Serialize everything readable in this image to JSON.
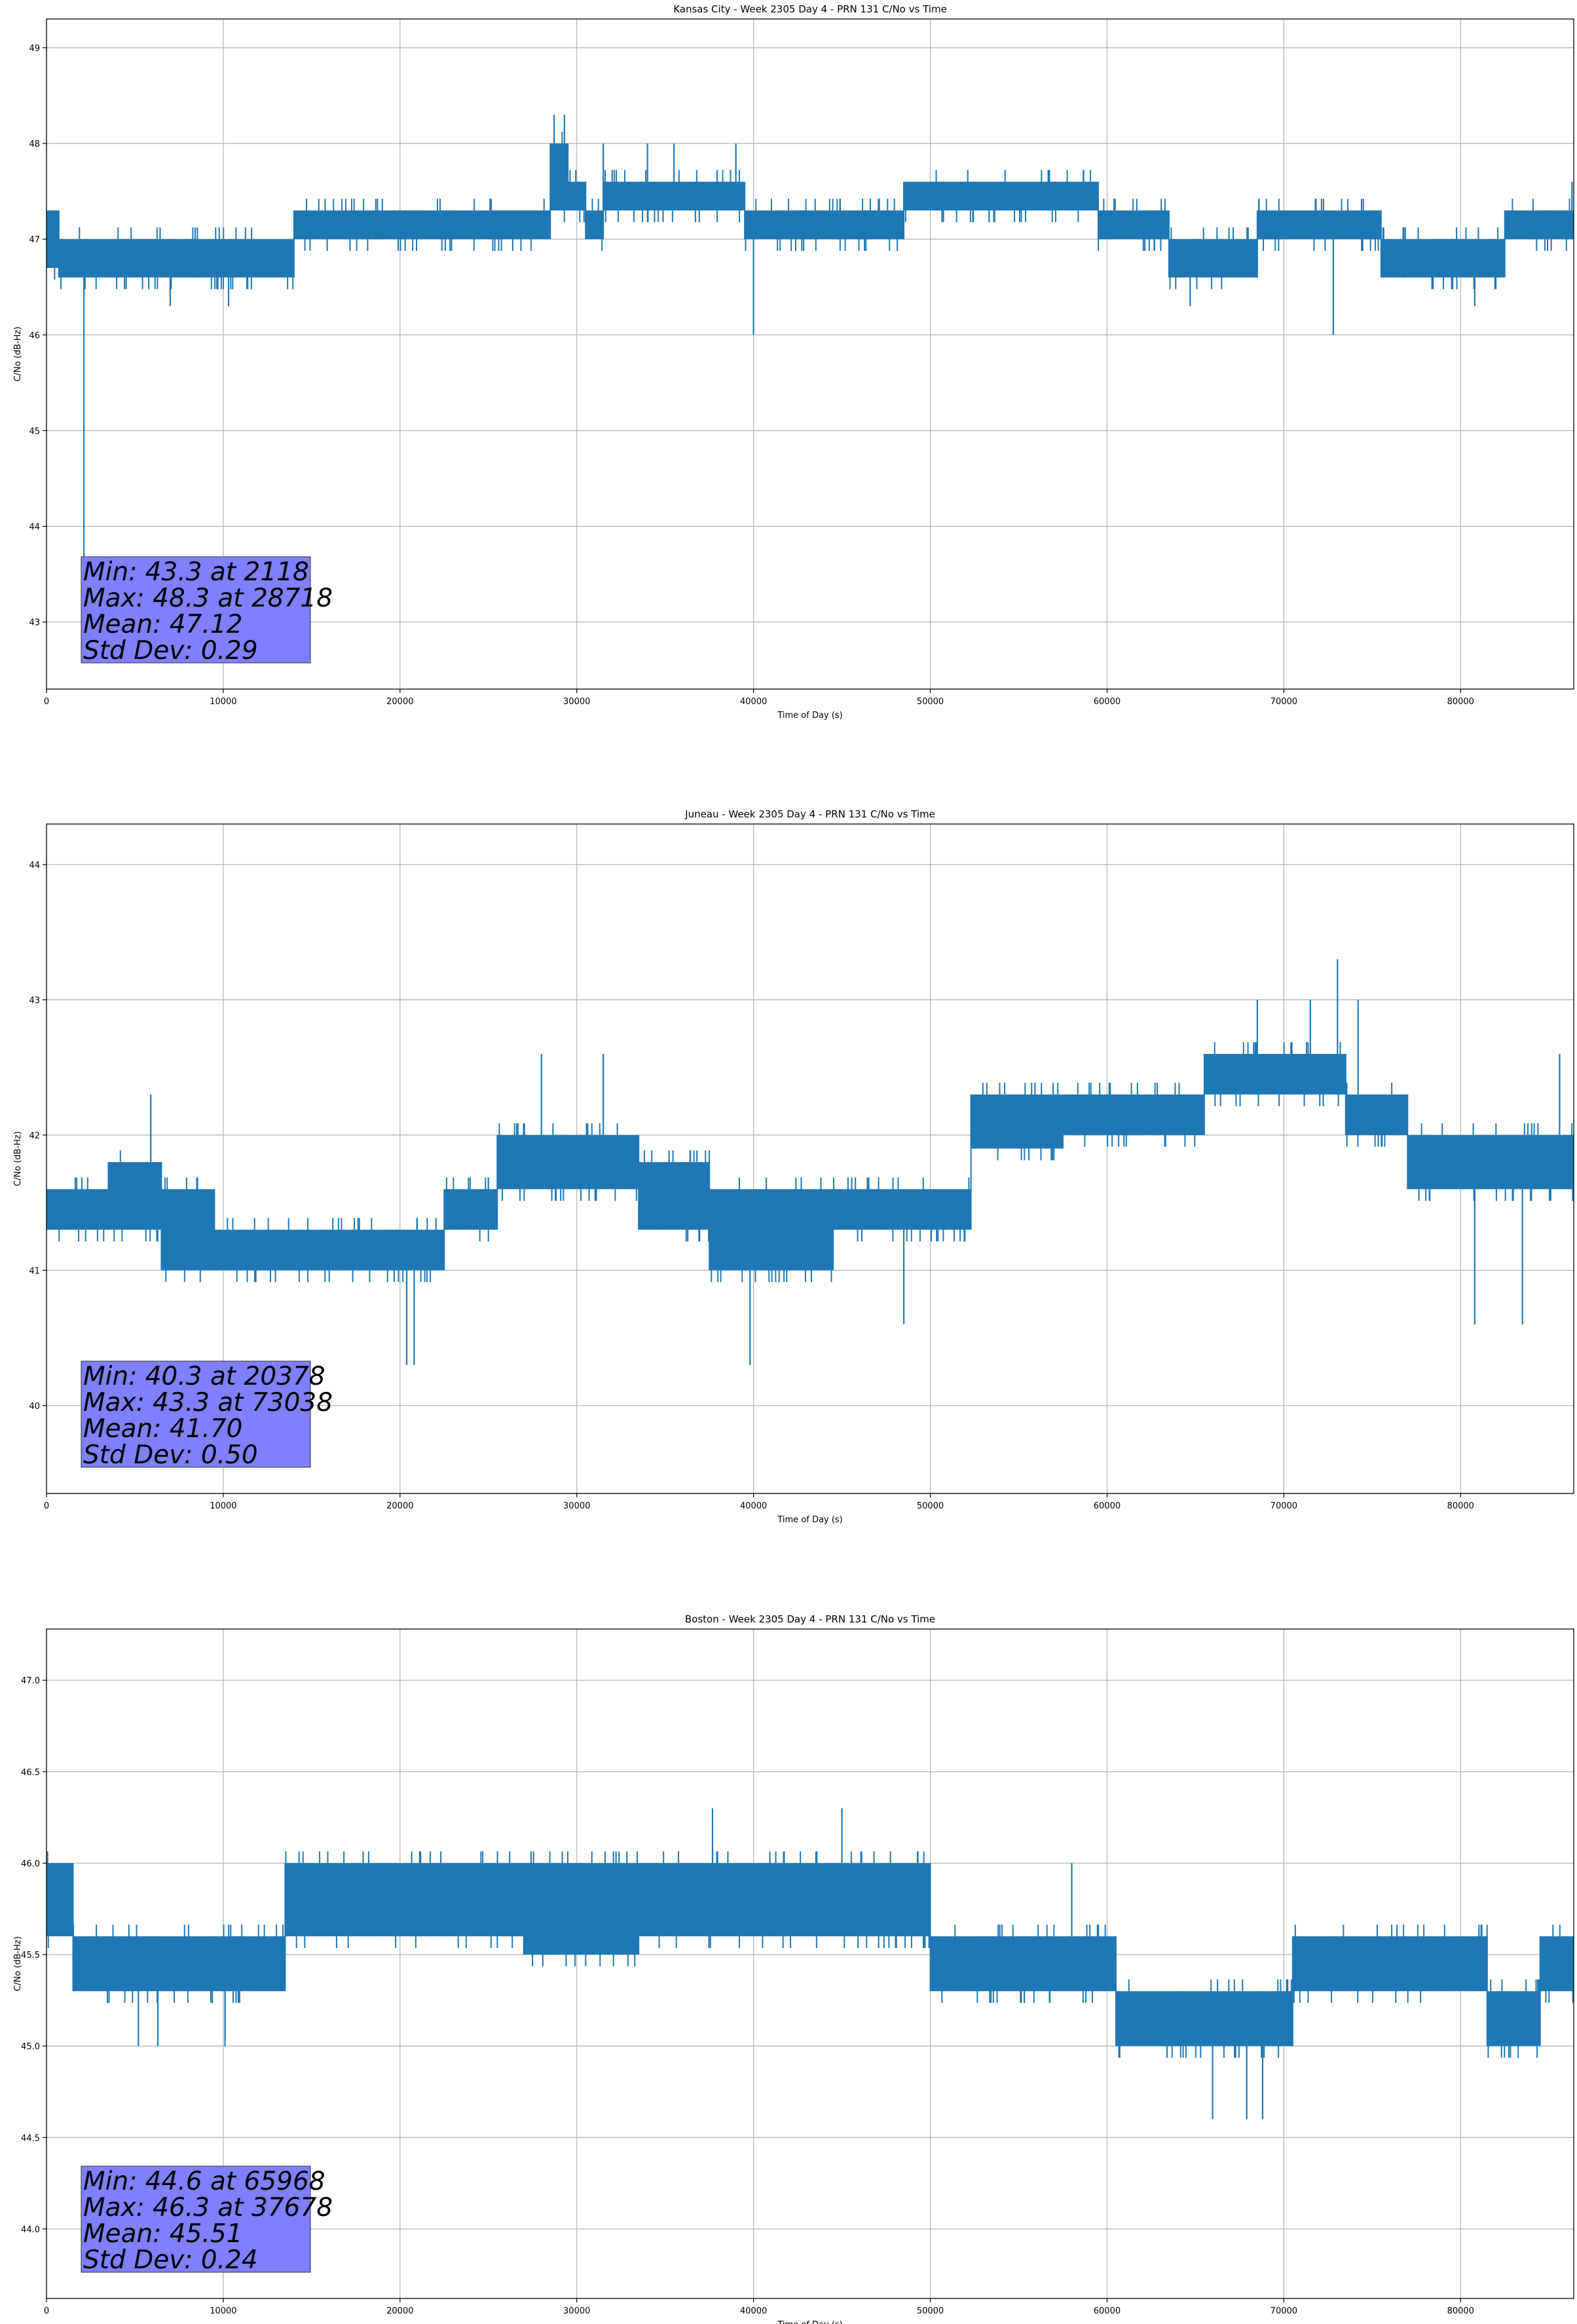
{
  "chart_data": [
    {
      "type": "line",
      "title": "Kansas City - Week 2305 Day 4 - PRN 131 C/No vs Time",
      "xlabel": "Time of Day (s)",
      "ylabel": "C/No (dB-Hz)",
      "xlim": [
        0,
        86400
      ],
      "ylim": [
        42.3,
        49.3
      ],
      "xticks": [
        0,
        10000,
        20000,
        30000,
        40000,
        50000,
        60000,
        70000,
        80000
      ],
      "yticks": [
        43,
        44,
        45,
        46,
        47,
        48,
        49
      ],
      "ytick_labels": [
        "43",
        "44",
        "45",
        "46",
        "47",
        "48",
        "49"
      ],
      "grid": true,
      "color": "#1f77b4",
      "series": [
        {
          "name": "C/No",
          "band": [
            {
              "x0": 0,
              "x1": 700,
              "lo": 46.7,
              "hi": 47.3
            },
            {
              "x0": 700,
              "x1": 14000,
              "lo": 46.6,
              "hi": 47.0
            },
            {
              "x0": 14000,
              "x1": 28500,
              "lo": 47.0,
              "hi": 47.3
            },
            {
              "x0": 28500,
              "x1": 29500,
              "lo": 47.3,
              "hi": 48.0
            },
            {
              "x0": 29500,
              "x1": 30500,
              "lo": 47.3,
              "hi": 47.6
            },
            {
              "x0": 30500,
              "x1": 31500,
              "lo": 47.0,
              "hi": 47.3
            },
            {
              "x0": 31500,
              "x1": 39500,
              "lo": 47.3,
              "hi": 47.6
            },
            {
              "x0": 39500,
              "x1": 48500,
              "lo": 47.0,
              "hi": 47.3
            },
            {
              "x0": 48500,
              "x1": 59500,
              "lo": 47.3,
              "hi": 47.6
            },
            {
              "x0": 59500,
              "x1": 63500,
              "lo": 47.0,
              "hi": 47.3
            },
            {
              "x0": 63500,
              "x1": 68500,
              "lo": 46.6,
              "hi": 47.0
            },
            {
              "x0": 68500,
              "x1": 75500,
              "lo": 47.0,
              "hi": 47.3
            },
            {
              "x0": 75500,
              "x1": 82500,
              "lo": 46.6,
              "hi": 47.0
            },
            {
              "x0": 82500,
              "x1": 86400,
              "lo": 47.0,
              "hi": 47.3
            }
          ]
        }
      ],
      "spikes": [
        {
          "x": 2118,
          "y": 43.3
        },
        {
          "x": 28718,
          "y": 48.3
        },
        {
          "x": 29300,
          "y": 48.3
        },
        {
          "x": 31500,
          "y": 48.0
        },
        {
          "x": 34000,
          "y": 48.0
        },
        {
          "x": 35500,
          "y": 48.0
        },
        {
          "x": 39000,
          "y": 48.0
        },
        {
          "x": 40000,
          "y": 46.0
        },
        {
          "x": 72800,
          "y": 46.0
        },
        {
          "x": 80800,
          "y": 46.3
        },
        {
          "x": 64700,
          "y": 46.3
        },
        {
          "x": 10300,
          "y": 46.3
        },
        {
          "x": 7000,
          "y": 46.3
        },
        {
          "x": 86300,
          "y": 47.6
        }
      ],
      "annotation": [
        "Min: 43.3 at 2118",
        "Max: 48.3 at 28718",
        "Mean: 47.12",
        "Std Dev: 0.29"
      ]
    },
    {
      "type": "line",
      "title": "Juneau - Week 2305 Day 4 - PRN 131 C/No vs Time",
      "xlabel": "Time of Day (s)",
      "ylabel": "C/No (dB-Hz)",
      "xlim": [
        0,
        86400
      ],
      "ylim": [
        39.35,
        44.3
      ],
      "xticks": [
        0,
        10000,
        20000,
        30000,
        40000,
        50000,
        60000,
        70000,
        80000
      ],
      "yticks": [
        40,
        41,
        42,
        43,
        44
      ],
      "ytick_labels": [
        "40",
        "41",
        "42",
        "43",
        "44"
      ],
      "grid": true,
      "color": "#1f77b4",
      "series": [
        {
          "name": "C/No",
          "band": [
            {
              "x0": 0,
              "x1": 3500,
              "lo": 41.3,
              "hi": 41.6
            },
            {
              "x0": 3500,
              "x1": 6500,
              "lo": 41.3,
              "hi": 41.8
            },
            {
              "x0": 6500,
              "x1": 9500,
              "lo": 41.0,
              "hi": 41.6
            },
            {
              "x0": 9500,
              "x1": 22500,
              "lo": 41.0,
              "hi": 41.3
            },
            {
              "x0": 22500,
              "x1": 25500,
              "lo": 41.3,
              "hi": 41.6
            },
            {
              "x0": 25500,
              "x1": 33500,
              "lo": 41.6,
              "hi": 42.0
            },
            {
              "x0": 33500,
              "x1": 37500,
              "lo": 41.3,
              "hi": 41.8
            },
            {
              "x0": 37500,
              "x1": 44500,
              "lo": 41.0,
              "hi": 41.6
            },
            {
              "x0": 44500,
              "x1": 52300,
              "lo": 41.3,
              "hi": 41.6
            },
            {
              "x0": 52300,
              "x1": 57500,
              "lo": 41.9,
              "hi": 42.3
            },
            {
              "x0": 57500,
              "x1": 65500,
              "lo": 42.0,
              "hi": 42.3
            },
            {
              "x0": 65500,
              "x1": 73500,
              "lo": 42.3,
              "hi": 42.6
            },
            {
              "x0": 73500,
              "x1": 77000,
              "lo": 42.0,
              "hi": 42.3
            },
            {
              "x0": 77000,
              "x1": 81500,
              "lo": 41.6,
              "hi": 42.0
            },
            {
              "x0": 81500,
              "x1": 86400,
              "lo": 41.6,
              "hi": 42.0
            }
          ]
        }
      ],
      "spikes": [
        {
          "x": 5900,
          "y": 42.3
        },
        {
          "x": 20378,
          "y": 40.3
        },
        {
          "x": 20800,
          "y": 40.3
        },
        {
          "x": 28000,
          "y": 42.6
        },
        {
          "x": 31500,
          "y": 42.6
        },
        {
          "x": 39800,
          "y": 40.3
        },
        {
          "x": 48500,
          "y": 40.6
        },
        {
          "x": 73038,
          "y": 43.3
        },
        {
          "x": 68500,
          "y": 43.0
        },
        {
          "x": 71500,
          "y": 43.0
        },
        {
          "x": 74200,
          "y": 43.0
        },
        {
          "x": 83500,
          "y": 40.6
        },
        {
          "x": 85600,
          "y": 42.6
        },
        {
          "x": 80800,
          "y": 40.6
        }
      ],
      "annotation": [
        "Min: 40.3 at 20378",
        "Max: 43.3 at 73038",
        "Mean: 41.70",
        "Std Dev: 0.50"
      ]
    },
    {
      "type": "line",
      "title": "Boston - Week 2305 Day 4 - PRN 131 C/No vs Time",
      "xlabel": "Time of Day (s)",
      "ylabel": "C/No (dB-Hz)",
      "xlim": [
        0,
        86400
      ],
      "ylim": [
        43.62,
        47.28
      ],
      "xticks": [
        0,
        10000,
        20000,
        30000,
        40000,
        50000,
        60000,
        70000,
        80000
      ],
      "yticks": [
        44.0,
        44.5,
        45.0,
        45.5,
        46.0,
        46.5,
        47.0
      ],
      "ytick_labels": [
        "44.0",
        "44.5",
        "45.0",
        "45.5",
        "46.0",
        "46.5",
        "47.0"
      ],
      "grid": true,
      "color": "#1f77b4",
      "series": [
        {
          "name": "C/No",
          "band": [
            {
              "x0": 0,
              "x1": 1500,
              "lo": 45.6,
              "hi": 46.0
            },
            {
              "x0": 1500,
              "x1": 13500,
              "lo": 45.3,
              "hi": 45.6
            },
            {
              "x0": 13500,
              "x1": 27000,
              "lo": 45.6,
              "hi": 46.0
            },
            {
              "x0": 27000,
              "x1": 33500,
              "lo": 45.5,
              "hi": 46.0
            },
            {
              "x0": 33500,
              "x1": 50000,
              "lo": 45.6,
              "hi": 46.0
            },
            {
              "x0": 50000,
              "x1": 60500,
              "lo": 45.3,
              "hi": 45.6
            },
            {
              "x0": 60500,
              "x1": 70500,
              "lo": 45.0,
              "hi": 45.3
            },
            {
              "x0": 70500,
              "x1": 81500,
              "lo": 45.3,
              "hi": 45.6
            },
            {
              "x0": 81500,
              "x1": 84500,
              "lo": 45.0,
              "hi": 45.3
            },
            {
              "x0": 84500,
              "x1": 86400,
              "lo": 45.3,
              "hi": 45.6
            }
          ]
        }
      ],
      "spikes": [
        {
          "x": 5200,
          "y": 45.0
        },
        {
          "x": 6300,
          "y": 45.0
        },
        {
          "x": 10100,
          "y": 45.0
        },
        {
          "x": 37678,
          "y": 46.3
        },
        {
          "x": 45000,
          "y": 46.3
        },
        {
          "x": 65968,
          "y": 44.6
        },
        {
          "x": 67900,
          "y": 44.6
        },
        {
          "x": 68800,
          "y": 44.6
        },
        {
          "x": 58000,
          "y": 46.0
        }
      ],
      "annotation": [
        "Min: 44.6 at 65968",
        "Max: 46.3 at 37678",
        "Mean: 45.51",
        "Std Dev: 0.24"
      ]
    }
  ]
}
